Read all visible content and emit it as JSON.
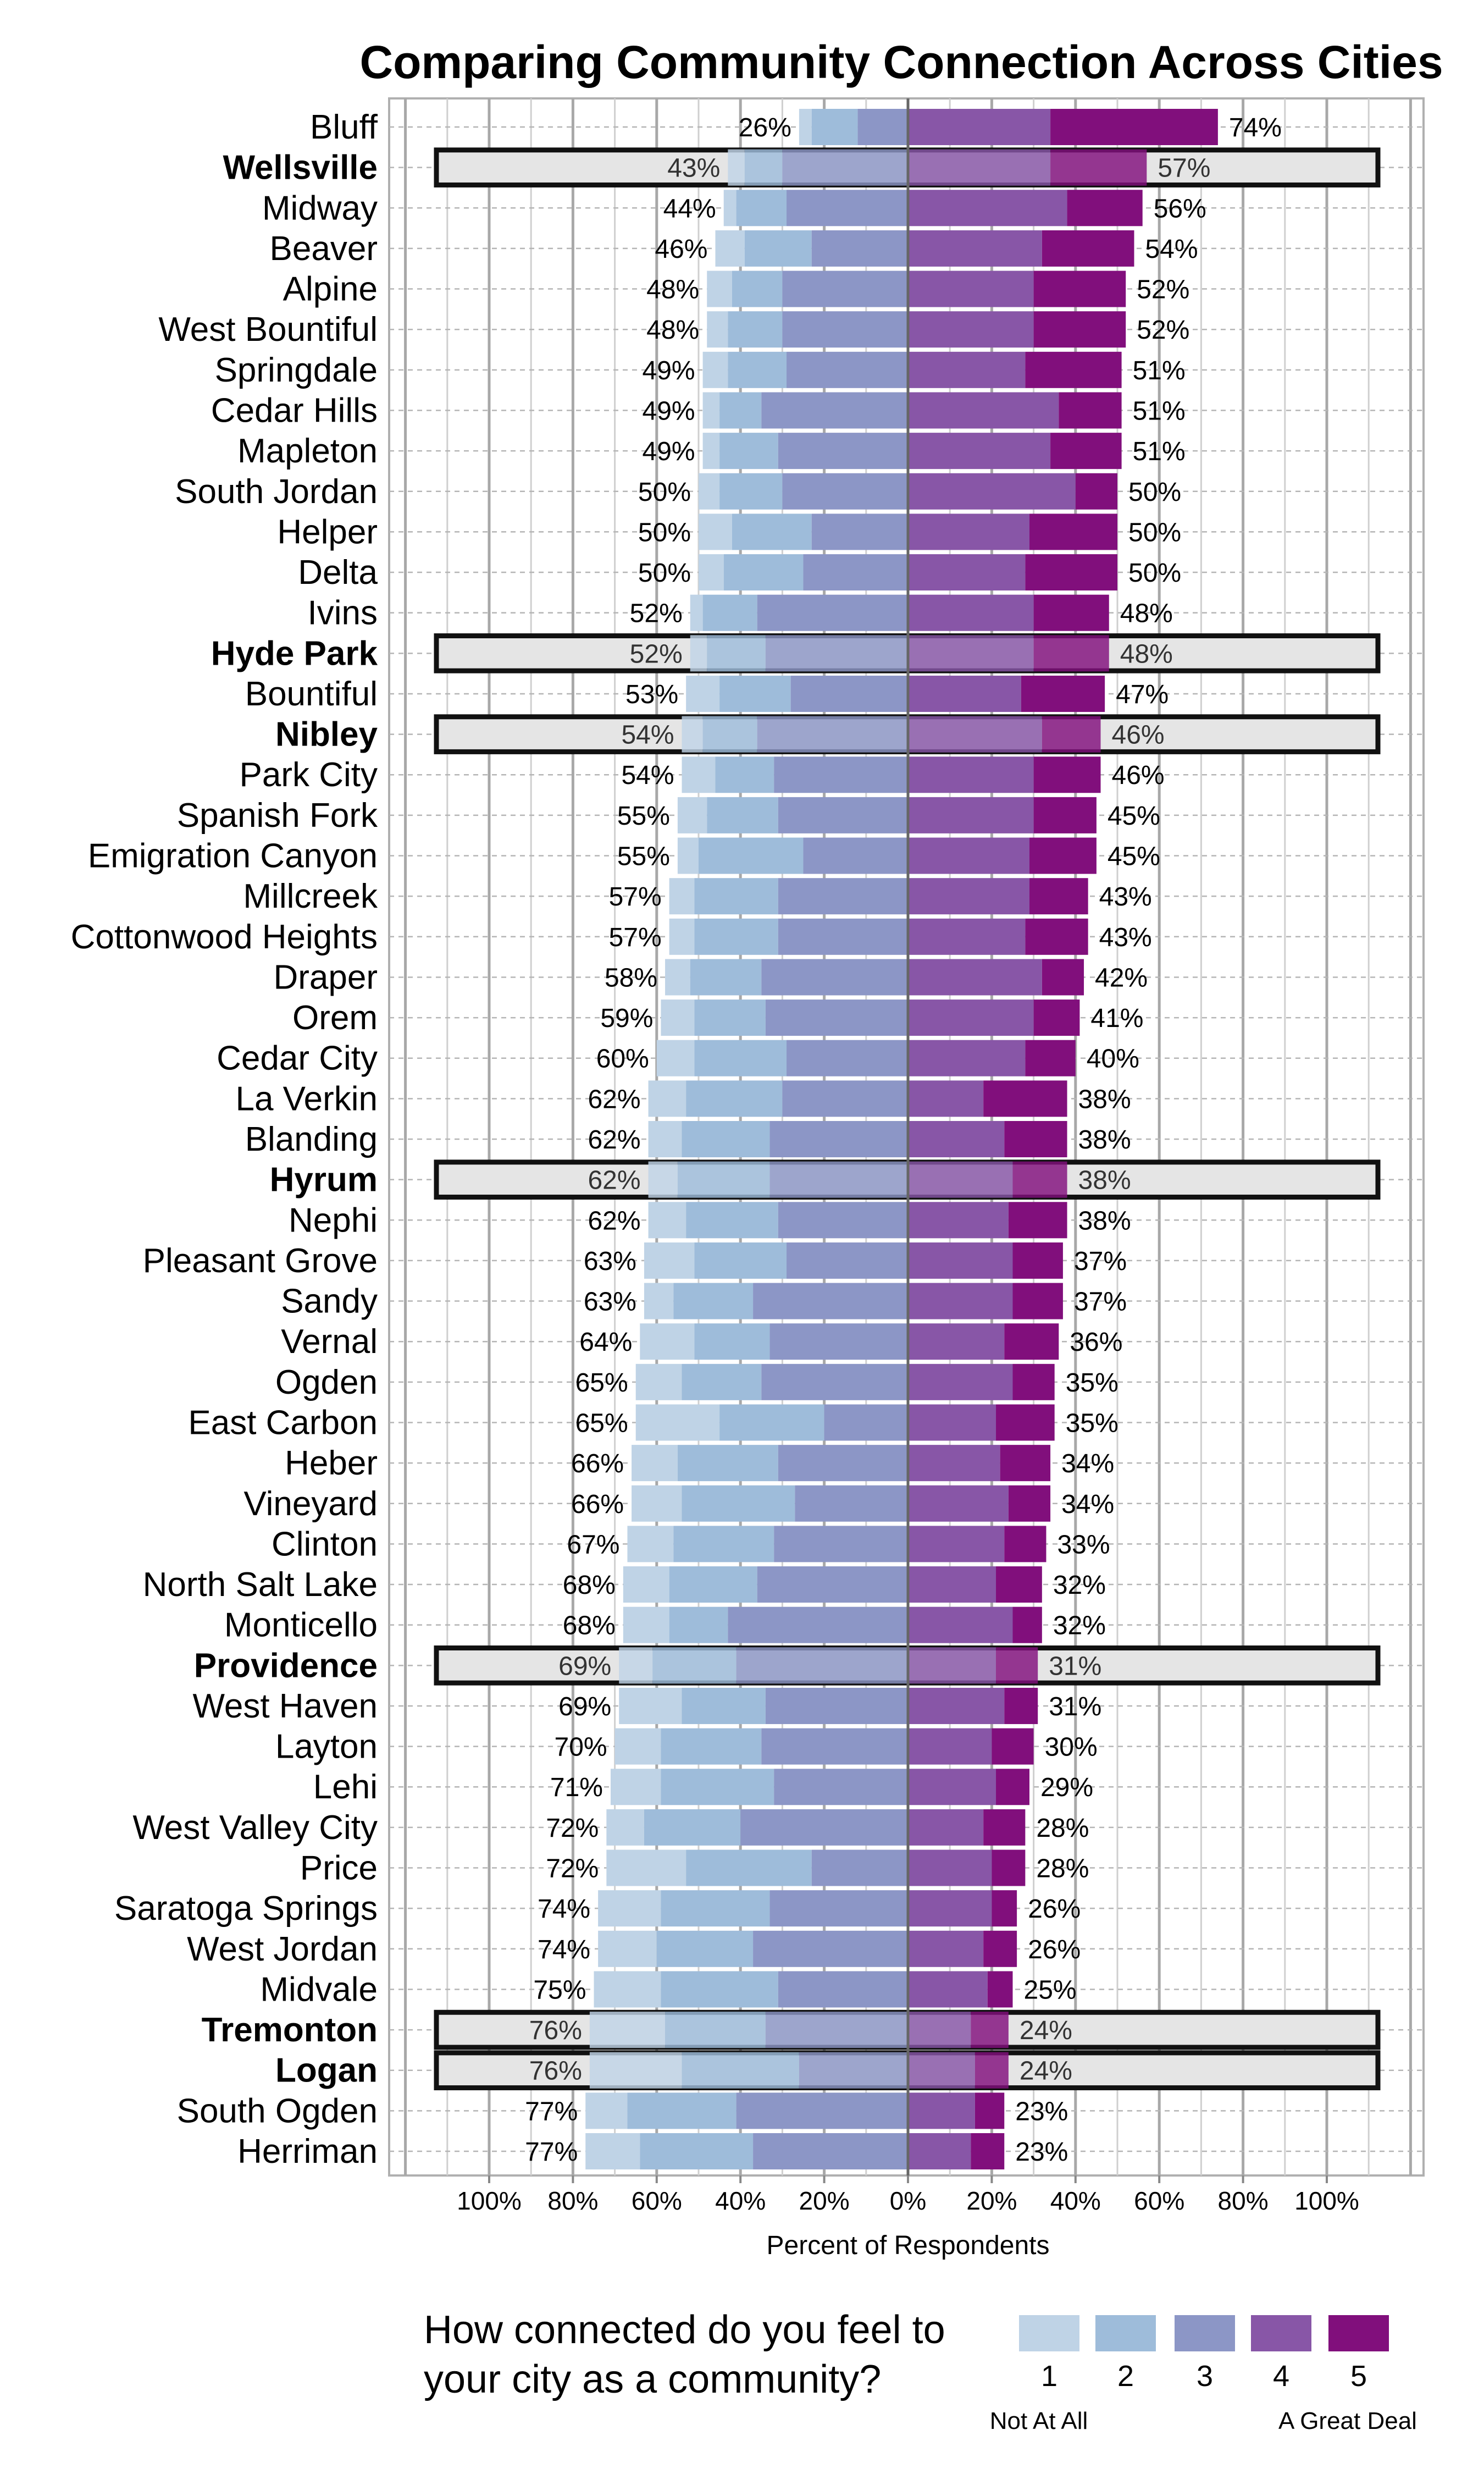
{
  "chart_data": {
    "type": "bar",
    "subtype": "diverging-stacked",
    "title": "Comparing Community Connection Across Cities",
    "xlabel": "Percent of Respondents",
    "xlim": [
      -123,
      123
    ],
    "x_tick_values": [
      -100,
      -80,
      -60,
      -40,
      -20,
      0,
      20,
      40,
      60,
      80,
      100
    ],
    "x_tick_labels": [
      "100%",
      "80%",
      "60%",
      "40%",
      "20%",
      "0%",
      "20%",
      "40%",
      "60%",
      "80%",
      "100%"
    ],
    "legend": {
      "title_line1": "How connected do you feel to",
      "title_line2": "your city as a community?",
      "placement": "bottom",
      "levels": [
        "1",
        "2",
        "3",
        "4",
        "5"
      ],
      "low_label": "Not At All",
      "high_label": "A Great Deal",
      "colors": [
        "#bfd3e6",
        "#9ebcda",
        "#8c96c6",
        "#8856a7",
        "#810f7c"
      ]
    },
    "series_names": [
      "1",
      "2",
      "3",
      "4",
      "5"
    ],
    "rows": [
      {
        "city": "Bluff",
        "highlight": false,
        "values": [
          3,
          11,
          12,
          34,
          40
        ],
        "left_label": "26%",
        "right_label": "74%"
      },
      {
        "city": "Wellsville",
        "highlight": true,
        "values": [
          4,
          9,
          30,
          34,
          23
        ],
        "left_label": "43%",
        "right_label": "57%"
      },
      {
        "city": "Midway",
        "highlight": false,
        "values": [
          3,
          12,
          29,
          38,
          18
        ],
        "left_label": "44%",
        "right_label": "56%"
      },
      {
        "city": "Beaver",
        "highlight": false,
        "values": [
          7,
          16,
          23,
          32,
          22
        ],
        "left_label": "46%",
        "right_label": "54%"
      },
      {
        "city": "Alpine",
        "highlight": false,
        "values": [
          6,
          12,
          30,
          30,
          22
        ],
        "left_label": "48%",
        "right_label": "52%"
      },
      {
        "city": "West Bountiful",
        "highlight": false,
        "values": [
          5,
          13,
          30,
          30,
          22
        ],
        "left_label": "48%",
        "right_label": "52%"
      },
      {
        "city": "Springdale",
        "highlight": false,
        "values": [
          6,
          14,
          29,
          28,
          23
        ],
        "left_label": "49%",
        "right_label": "51%"
      },
      {
        "city": "Cedar Hills",
        "highlight": false,
        "values": [
          4,
          10,
          35,
          36,
          15
        ],
        "left_label": "49%",
        "right_label": "51%"
      },
      {
        "city": "Mapleton",
        "highlight": false,
        "values": [
          4,
          14,
          31,
          34,
          17
        ],
        "left_label": "49%",
        "right_label": "51%"
      },
      {
        "city": "South Jordan",
        "highlight": false,
        "values": [
          5,
          15,
          30,
          40,
          10
        ],
        "left_label": "50%",
        "right_label": "50%"
      },
      {
        "city": "Helper",
        "highlight": false,
        "values": [
          8,
          19,
          23,
          29,
          21
        ],
        "left_label": "50%",
        "right_label": "50%"
      },
      {
        "city": "Delta",
        "highlight": false,
        "values": [
          6,
          19,
          25,
          28,
          22
        ],
        "left_label": "50%",
        "right_label": "50%"
      },
      {
        "city": "Ivins",
        "highlight": false,
        "values": [
          3,
          13,
          36,
          30,
          18
        ],
        "left_label": "52%",
        "right_label": "48%"
      },
      {
        "city": "Hyde Park",
        "highlight": true,
        "values": [
          4,
          14,
          34,
          30,
          18
        ],
        "left_label": "52%",
        "right_label": "48%"
      },
      {
        "city": "Bountiful",
        "highlight": false,
        "values": [
          8,
          17,
          28,
          27,
          20
        ],
        "left_label": "53%",
        "right_label": "47%"
      },
      {
        "city": "Nibley",
        "highlight": true,
        "values": [
          5,
          13,
          36,
          32,
          14
        ],
        "left_label": "54%",
        "right_label": "46%"
      },
      {
        "city": "Park City",
        "highlight": false,
        "values": [
          8,
          14,
          32,
          30,
          16
        ],
        "left_label": "54%",
        "right_label": "46%"
      },
      {
        "city": "Spanish Fork",
        "highlight": false,
        "values": [
          7,
          17,
          31,
          30,
          15
        ],
        "left_label": "55%",
        "right_label": "45%"
      },
      {
        "city": "Emigration Canyon",
        "highlight": false,
        "values": [
          5,
          25,
          25,
          29,
          16
        ],
        "left_label": "55%",
        "right_label": "45%"
      },
      {
        "city": "Millcreek",
        "highlight": false,
        "values": [
          6,
          20,
          31,
          29,
          14
        ],
        "left_label": "57%",
        "right_label": "43%"
      },
      {
        "city": "Cottonwood Heights",
        "highlight": false,
        "values": [
          6,
          20,
          31,
          28,
          15
        ],
        "left_label": "57%",
        "right_label": "43%"
      },
      {
        "city": "Draper",
        "highlight": false,
        "values": [
          6,
          17,
          35,
          32,
          10
        ],
        "left_label": "58%",
        "right_label": "42%"
      },
      {
        "city": "Orem",
        "highlight": false,
        "values": [
          8,
          17,
          34,
          30,
          11
        ],
        "left_label": "59%",
        "right_label": "41%"
      },
      {
        "city": "Cedar City",
        "highlight": false,
        "values": [
          9,
          22,
          29,
          28,
          12
        ],
        "left_label": "60%",
        "right_label": "40%"
      },
      {
        "city": "La Verkin",
        "highlight": false,
        "values": [
          9,
          23,
          30,
          18,
          20
        ],
        "left_label": "62%",
        "right_label": "38%"
      },
      {
        "city": "Blanding",
        "highlight": false,
        "values": [
          8,
          21,
          33,
          23,
          15
        ],
        "left_label": "62%",
        "right_label": "38%"
      },
      {
        "city": "Hyrum",
        "highlight": true,
        "values": [
          7,
          22,
          33,
          25,
          13
        ],
        "left_label": "62%",
        "right_label": "38%"
      },
      {
        "city": "Nephi",
        "highlight": false,
        "values": [
          9,
          22,
          31,
          24,
          14
        ],
        "left_label": "62%",
        "right_label": "38%"
      },
      {
        "city": "Pleasant Grove",
        "highlight": false,
        "values": [
          12,
          22,
          29,
          25,
          12
        ],
        "left_label": "63%",
        "right_label": "37%"
      },
      {
        "city": "Sandy",
        "highlight": false,
        "values": [
          7,
          19,
          37,
          25,
          12
        ],
        "left_label": "63%",
        "right_label": "37%"
      },
      {
        "city": "Vernal",
        "highlight": false,
        "values": [
          13,
          18,
          33,
          23,
          13
        ],
        "left_label": "64%",
        "right_label": "36%"
      },
      {
        "city": "Ogden",
        "highlight": false,
        "values": [
          11,
          19,
          35,
          25,
          10
        ],
        "left_label": "65%",
        "right_label": "35%"
      },
      {
        "city": "East Carbon",
        "highlight": false,
        "values": [
          20,
          25,
          20,
          21,
          14
        ],
        "left_label": "65%",
        "right_label": "35%"
      },
      {
        "city": "Heber",
        "highlight": false,
        "values": [
          11,
          24,
          31,
          22,
          12
        ],
        "left_label": "66%",
        "right_label": "34%"
      },
      {
        "city": "Vineyard",
        "highlight": false,
        "values": [
          12,
          27,
          27,
          24,
          10
        ],
        "left_label": "66%",
        "right_label": "34%"
      },
      {
        "city": "Clinton",
        "highlight": false,
        "values": [
          11,
          24,
          32,
          23,
          10
        ],
        "left_label": "67%",
        "right_label": "33%"
      },
      {
        "city": "North Salt Lake",
        "highlight": false,
        "values": [
          11,
          21,
          36,
          21,
          11
        ],
        "left_label": "68%",
        "right_label": "32%"
      },
      {
        "city": "Monticello",
        "highlight": false,
        "values": [
          11,
          14,
          43,
          25,
          7
        ],
        "left_label": "68%",
        "right_label": "32%"
      },
      {
        "city": "Providence",
        "highlight": true,
        "values": [
          8,
          20,
          41,
          21,
          10
        ],
        "left_label": "69%",
        "right_label": "31%"
      },
      {
        "city": "West Haven",
        "highlight": false,
        "values": [
          15,
          20,
          34,
          23,
          8
        ],
        "left_label": "69%",
        "right_label": "31%"
      },
      {
        "city": "Layton",
        "highlight": false,
        "values": [
          11,
          24,
          35,
          20,
          10
        ],
        "left_label": "70%",
        "right_label": "30%"
      },
      {
        "city": "Lehi",
        "highlight": false,
        "values": [
          12,
          27,
          32,
          21,
          8
        ],
        "left_label": "71%",
        "right_label": "29%"
      },
      {
        "city": "West Valley City",
        "highlight": false,
        "values": [
          9,
          23,
          40,
          18,
          10
        ],
        "left_label": "72%",
        "right_label": "28%"
      },
      {
        "city": "Price",
        "highlight": false,
        "values": [
          19,
          30,
          23,
          20,
          8
        ],
        "left_label": "72%",
        "right_label": "28%"
      },
      {
        "city": "Saratoga Springs",
        "highlight": false,
        "values": [
          15,
          26,
          33,
          20,
          6
        ],
        "left_label": "74%",
        "right_label": "26%"
      },
      {
        "city": "West Jordan",
        "highlight": false,
        "values": [
          14,
          23,
          37,
          18,
          8
        ],
        "left_label": "74%",
        "right_label": "26%"
      },
      {
        "city": "Midvale",
        "highlight": false,
        "values": [
          16,
          28,
          31,
          19,
          6
        ],
        "left_label": "75%",
        "right_label": "25%"
      },
      {
        "city": "Tremonton",
        "highlight": true,
        "values": [
          18,
          24,
          34,
          15,
          9
        ],
        "left_label": "76%",
        "right_label": "24%"
      },
      {
        "city": "Logan",
        "highlight": true,
        "values": [
          22,
          28,
          26,
          16,
          8
        ],
        "left_label": "76%",
        "right_label": "24%"
      },
      {
        "city": "South Ogden",
        "highlight": false,
        "values": [
          10,
          26,
          41,
          16,
          7
        ],
        "left_label": "77%",
        "right_label": "23%"
      },
      {
        "city": "Herriman",
        "highlight": false,
        "values": [
          13,
          27,
          37,
          15,
          8
        ],
        "left_label": "77%",
        "right_label": "23%"
      }
    ]
  }
}
